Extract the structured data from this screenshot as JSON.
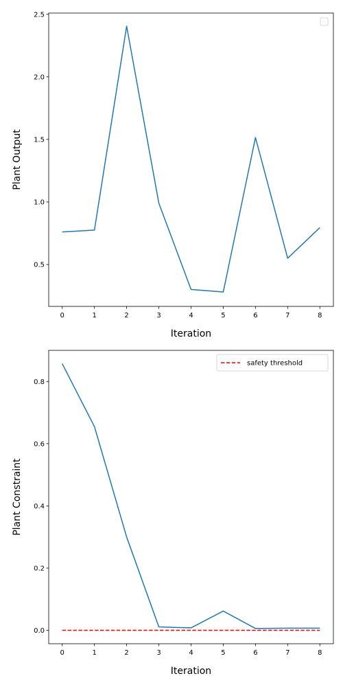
{
  "chart_data": [
    {
      "type": "line",
      "title": "",
      "xlabel": "Iteration",
      "ylabel": "Plant Output",
      "x": [
        0,
        1,
        2,
        3,
        4,
        5,
        6,
        7,
        8
      ],
      "xlim": [
        -0.42,
        8.42
      ],
      "ylim": [
        0.165,
        2.51
      ],
      "xticks": [
        0,
        1,
        2,
        3,
        4,
        5,
        6,
        7,
        8
      ],
      "yticks": [
        0.5,
        1.0,
        1.5,
        2.0,
        2.5
      ],
      "ytick_labels": [
        "0.5",
        "1.0",
        "1.5",
        "2.0",
        "2.5"
      ],
      "series": [
        {
          "name": "",
          "color": "#1f77b4",
          "style": "solid",
          "values": [
            0.76,
            0.775,
            2.405,
            0.99,
            0.3,
            0.28,
            1.515,
            0.55,
            0.795
          ]
        }
      ],
      "legend": {
        "position": "top-right",
        "entries": []
      }
    },
    {
      "type": "line",
      "title": "",
      "xlabel": "Iteration",
      "ylabel": "Plant Constraint",
      "x": [
        0,
        1,
        2,
        3,
        4,
        5,
        6,
        7,
        8
      ],
      "xlim": [
        -0.42,
        8.42
      ],
      "ylim": [
        -0.043,
        0.9
      ],
      "xticks": [
        0,
        1,
        2,
        3,
        4,
        5,
        6,
        7,
        8
      ],
      "yticks": [
        0.0,
        0.2,
        0.4,
        0.6,
        0.8
      ],
      "ytick_labels": [
        "0.0",
        "0.2",
        "0.4",
        "0.6",
        "0.8"
      ],
      "series": [
        {
          "name": "",
          "color": "#1f77b4",
          "style": "solid",
          "values": [
            0.857,
            0.655,
            0.3,
            0.011,
            0.008,
            0.062,
            0.006,
            0.007,
            0.007
          ]
        },
        {
          "name": "safety threshold",
          "color": "#ff0000",
          "style": "dashed",
          "values": [
            0,
            0,
            0,
            0,
            0,
            0,
            0,
            0,
            0
          ]
        }
      ],
      "legend": {
        "position": "top-right",
        "entries": [
          "safety threshold"
        ]
      }
    }
  ]
}
